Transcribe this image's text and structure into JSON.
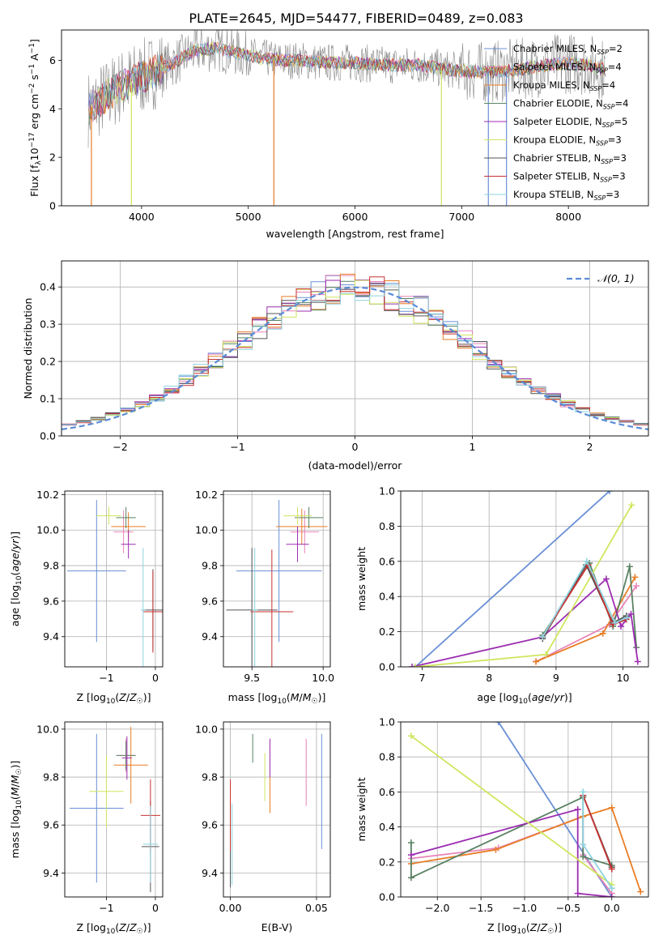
{
  "figure_title": "PLATE=2645, MJD=54477, FIBERID=0489, z=0.083",
  "colors": {
    "Chabrier MILES": "#6a8fd6",
    "Salpeter MILES": "#e784b8",
    "Kroupa MILES": "#e87d26",
    "Chabrier ELODIE": "#5a8262",
    "Salpeter ELODIE": "#9c2db0",
    "Kroupa ELODIE": "#cfe65e",
    "Chabrier STELIB": "#555555",
    "Salpeter STELIB": "#c83232",
    "Kroupa STELIB": "#8fd3df",
    "observed": "#888888",
    "normal": "#5b8bd6"
  },
  "chart_data": [
    {
      "id": "spectrum",
      "type": "line",
      "xlabel": "wavelength [Angstrom, rest frame]",
      "ylabel": "Flux [f_λ10^-17 erg cm^-2 s^-1 A^-1]",
      "xlim": [
        3250,
        8750
      ],
      "ylim": [
        0,
        7.25
      ],
      "xticks": [
        4000,
        5000,
        6000,
        7000,
        8000
      ],
      "yticks": [
        0,
        2,
        4,
        6
      ],
      "legend": [
        {
          "name": "Chabrier MILES",
          "text": "Chabrier MILES, N",
          "sub": "SSP",
          "tail": "=2"
        },
        {
          "name": "Salpeter MILES",
          "text": "Salpeter MILES, N",
          "sub": "SSP",
          "tail": "=4"
        },
        {
          "name": "Kroupa MILES",
          "text": "Kroupa MILES, N",
          "sub": "SSP",
          "tail": "=4"
        },
        {
          "name": "Chabrier ELODIE",
          "text": "Chabrier ELODIE, N",
          "sub": "SSP",
          "tail": "=4"
        },
        {
          "name": "Salpeter ELODIE",
          "text": "Salpeter ELODIE, N",
          "sub": "SSP",
          "tail": "=5"
        },
        {
          "name": "Kroupa ELODIE",
          "text": "Kroupa ELODIE, N",
          "sub": "SSP",
          "tail": "=3"
        },
        {
          "name": "Chabrier STELIB",
          "text": "Chabrier STELIB, N",
          "sub": "SSP",
          "tail": "=3"
        },
        {
          "name": "Salpeter STELIB",
          "text": "Salpeter STELIB, N",
          "sub": "SSP",
          "tail": "=3"
        },
        {
          "name": "Kroupa STELIB",
          "text": "Kroupa STELIB, N",
          "sub": "SSP",
          "tail": "=3"
        }
      ],
      "continuum": [
        [
          3500,
          4.0
        ],
        [
          3600,
          4.3
        ],
        [
          3700,
          4.6
        ],
        [
          3800,
          4.9
        ],
        [
          3950,
          5.2
        ],
        [
          4100,
          5.5
        ],
        [
          4300,
          5.9
        ],
        [
          4500,
          6.4
        ],
        [
          4700,
          6.5
        ],
        [
          4900,
          6.3
        ],
        [
          5100,
          6.1
        ],
        [
          5300,
          6.0
        ],
        [
          5500,
          6.0
        ],
        [
          5700,
          5.9
        ],
        [
          6000,
          5.9
        ],
        [
          6300,
          5.8
        ],
        [
          6600,
          5.8
        ],
        [
          6900,
          5.6
        ],
        [
          7200,
          5.5
        ],
        [
          7500,
          5.6
        ],
        [
          7800,
          5.8
        ],
        [
          8000,
          5.9
        ],
        [
          8200,
          5.8
        ],
        [
          8350,
          5.6
        ]
      ],
      "dips": [
        {
          "x": 3530,
          "y": 0.0,
          "name": "Kroupa MILES"
        },
        {
          "x": 3905,
          "y": 0.0,
          "name": "Kroupa ELODIE"
        },
        {
          "x": 5240,
          "y": 0.0,
          "name": "Kroupa MILES"
        },
        {
          "x": 6810,
          "y": 0.0,
          "name": "Kroupa ELODIE"
        },
        {
          "x": 7250,
          "y": 0.0,
          "name": "Chabrier MILES"
        },
        {
          "x": 7420,
          "y": 0.0,
          "name": "Chabrier MILES"
        }
      ]
    },
    {
      "id": "residuals",
      "type": "area",
      "xlabel": "(data-model)/error",
      "ylabel": "Normed distribution",
      "xlim": [
        -2.5,
        2.5
      ],
      "ylim": [
        0,
        0.47
      ],
      "xticks": [
        -2,
        -1,
        0,
        1,
        2
      ],
      "xtick_labels": [
        "−2",
        "−1",
        "0",
        "1",
        "2"
      ],
      "yticks": [
        0.0,
        0.1,
        0.2,
        0.3,
        0.4
      ],
      "legend": "𝒩(0, 1)",
      "bins": 40
    },
    {
      "id": "age_vs_Z",
      "type": "scatter",
      "xlabel": "Z [log10(Z/Z☉)]",
      "ylabel": "age  [log10(age/yr)]",
      "xlim": [
        -1.85,
        0.15
      ],
      "ylim": [
        9.23,
        10.22
      ],
      "xticks": [
        -1,
        0
      ],
      "xtick_labels": [
        "−1",
        "0"
      ],
      "yticks": [
        9.4,
        9.6,
        9.8,
        10.0,
        10.2
      ],
      "points": [
        {
          "name": "Chabrier MILES",
          "x": -1.2,
          "y": 9.77,
          "xerr": 0.6,
          "yerr": 0.4
        },
        {
          "name": "Salpeter MILES",
          "x": -0.65,
          "y": 9.99,
          "xerr": 0.2,
          "yerr": 0.12
        },
        {
          "name": "Kroupa MILES",
          "x": -0.55,
          "y": 10.02,
          "xerr": 0.35,
          "yerr": 0.08
        },
        {
          "name": "Chabrier ELODIE",
          "x": -0.6,
          "y": 10.07,
          "xerr": 0.2,
          "yerr": 0.06
        },
        {
          "name": "Salpeter ELODIE",
          "x": -0.55,
          "y": 9.92,
          "xerr": 0.15,
          "yerr": 0.08
        },
        {
          "name": "Kroupa ELODIE",
          "x": -0.95,
          "y": 10.08,
          "xerr": 0.25,
          "yerr": 0.05
        },
        {
          "name": "Chabrier STELIB",
          "x": -0.05,
          "y": 9.55,
          "xerr": 0.2,
          "yerr": 0.23
        },
        {
          "name": "Salpeter STELIB",
          "x": -0.05,
          "y": 9.54,
          "xerr": 0.2,
          "yerr": 0.23
        },
        {
          "name": "Kroupa STELIB",
          "x": -0.25,
          "y": 9.55,
          "xerr": 0.05,
          "yerr": 0.35
        }
      ]
    },
    {
      "id": "age_vs_mass",
      "type": "scatter",
      "xlabel": "mass [log10(M/M☉)]",
      "ylabel": "",
      "xlim": [
        9.3,
        10.05
      ],
      "ylim": [
        9.23,
        10.22
      ],
      "xticks": [
        9.5,
        10.0
      ],
      "xtick_labels": [
        "9.5",
        "10.0"
      ],
      "yticks": [
        9.4,
        9.6,
        9.8,
        10.0,
        10.2
      ],
      "points": [
        {
          "name": "Chabrier MILES",
          "x": 9.69,
          "y": 9.77,
          "xerr": 0.3,
          "yerr": 0.4
        },
        {
          "name": "Salpeter MILES",
          "x": 9.87,
          "y": 9.99,
          "xerr": 0.1,
          "yerr": 0.12
        },
        {
          "name": "Kroupa MILES",
          "x": 9.85,
          "y": 10.02,
          "xerr": 0.18,
          "yerr": 0.1
        },
        {
          "name": "Chabrier ELODIE",
          "x": 9.9,
          "y": 10.07,
          "xerr": 0.1,
          "yerr": 0.06
        },
        {
          "name": "Salpeter ELODIE",
          "x": 9.82,
          "y": 9.92,
          "xerr": 0.08,
          "yerr": 0.1
        },
        {
          "name": "Kroupa ELODIE",
          "x": 9.82,
          "y": 10.08,
          "xerr": 0.1,
          "yerr": 0.05
        },
        {
          "name": "Chabrier STELIB",
          "x": 9.5,
          "y": 9.55,
          "xerr": 0.18,
          "yerr": 0.35
        },
        {
          "name": "Salpeter STELIB",
          "x": 9.64,
          "y": 9.54,
          "xerr": 0.15,
          "yerr": 0.35
        },
        {
          "name": "Kroupa STELIB",
          "x": 9.52,
          "y": 9.55,
          "xerr": 0.02,
          "yerr": 0.35
        }
      ]
    },
    {
      "id": "weight_vs_age",
      "type": "line",
      "xlabel": "age  [log10(age/yr)]",
      "ylabel": "mass weight",
      "xlim": [
        6.68,
        10.38
      ],
      "ylim": [
        0,
        1.0
      ],
      "xticks": [
        7,
        8,
        9,
        10
      ],
      "yticks": [
        0.0,
        0.2,
        0.4,
        0.6,
        0.8,
        1.0
      ],
      "series": [
        {
          "name": "Chabrier MILES",
          "x": [
            6.9,
            9.8
          ],
          "y": [
            0.0,
            1.0
          ]
        },
        {
          "name": "Salpeter MILES",
          "x": [
            8.7,
            9.8,
            10.2
          ],
          "y": [
            0.03,
            0.24,
            0.46
          ]
        },
        {
          "name": "Kroupa MILES",
          "x": [
            8.7,
            9.7,
            10.18
          ],
          "y": [
            0.03,
            0.19,
            0.51
          ]
        },
        {
          "name": "Chabrier ELODIE",
          "x": [
            8.8,
            9.5,
            9.85,
            10.1,
            10.2
          ],
          "y": [
            0.18,
            0.59,
            0.23,
            0.57,
            0.11
          ]
        },
        {
          "name": "Salpeter ELODIE",
          "x": [
            6.85,
            8.8,
            9.75,
            9.97,
            10.12,
            10.22
          ],
          "y": [
            0.0,
            0.17,
            0.5,
            0.23,
            0.3,
            0.03
          ]
        },
        {
          "name": "Kroupa ELODIE",
          "x": [
            6.9,
            8.85,
            10.13
          ],
          "y": [
            0.0,
            0.07,
            0.92
          ]
        },
        {
          "name": "Chabrier STELIB",
          "x": [
            8.8,
            9.45,
            9.85,
            10.05
          ],
          "y": [
            0.16,
            0.58,
            0.25,
            0.29
          ]
        },
        {
          "name": "Salpeter STELIB",
          "x": [
            8.8,
            9.48,
            9.85,
            10.05
          ],
          "y": [
            0.17,
            0.58,
            0.24,
            0.27
          ]
        },
        {
          "name": "Kroupa STELIB",
          "x": [
            8.8,
            9.46,
            9.88,
            10.06
          ],
          "y": [
            0.17,
            0.6,
            0.25,
            0.28
          ]
        }
      ]
    },
    {
      "id": "mass_vs_Z",
      "type": "scatter",
      "xlabel": "Z [log10(Z/Z☉)]",
      "ylabel": "mass [log10(M/M☉)]",
      "xlim": [
        -1.85,
        0.15
      ],
      "ylim": [
        9.3,
        10.03
      ],
      "xticks": [
        -1,
        0
      ],
      "xtick_labels": [
        "−1",
        "0"
      ],
      "yticks": [
        9.4,
        9.6,
        9.8,
        10.0
      ],
      "points": [
        {
          "name": "Chabrier MILES",
          "x": -1.2,
          "y": 9.67,
          "xerr": 0.55,
          "yerr": 0.31
        },
        {
          "name": "Salpeter MILES",
          "x": -0.6,
          "y": 9.89,
          "xerr": 0.18,
          "yerr": 0.07
        },
        {
          "name": "Kroupa MILES",
          "x": -0.5,
          "y": 9.85,
          "xerr": 0.35,
          "yerr": 0.16
        },
        {
          "name": "Chabrier ELODIE",
          "x": -0.6,
          "y": 9.89,
          "xerr": 0.2,
          "yerr": 0.06
        },
        {
          "name": "Salpeter ELODIE",
          "x": -0.58,
          "y": 9.88,
          "xerr": 0.1,
          "yerr": 0.09
        },
        {
          "name": "Kroupa ELODIE",
          "x": -1.0,
          "y": 9.74,
          "xerr": 0.35,
          "yerr": 0.15
        },
        {
          "name": "Chabrier STELIB",
          "x": -0.1,
          "y": 9.51,
          "xerr": 0.18,
          "yerr": 0.19
        },
        {
          "name": "Salpeter STELIB",
          "x": -0.1,
          "y": 9.64,
          "xerr": 0.2,
          "yerr": 0.15
        },
        {
          "name": "Kroupa STELIB",
          "x": -0.1,
          "y": 9.52,
          "xerr": 0.15,
          "yerr": 0.16
        }
      ]
    },
    {
      "id": "mass_vs_ebv",
      "type": "scatter",
      "xlabel": "E(B-V)",
      "ylabel": "",
      "xlim": [
        -0.004,
        0.058
      ],
      "ylim": [
        9.3,
        10.03
      ],
      "xticks": [
        0.0,
        0.05
      ],
      "xtick_labels": [
        "0.00",
        "0.05"
      ],
      "yticks": [
        9.4,
        9.6,
        9.8,
        10.0
      ],
      "points": [
        {
          "name": "Chabrier MILES",
          "x": 0.053,
          "y": 9.74,
          "xerr": 0,
          "yerr": 0.24
        },
        {
          "name": "Salpeter MILES",
          "x": 0.044,
          "y": 9.82,
          "xerr": 0,
          "yerr": 0.14
        },
        {
          "name": "Kroupa MILES",
          "x": 0.023,
          "y": 9.8,
          "xerr": 0,
          "yerr": 0.15
        },
        {
          "name": "Chabrier ELODIE",
          "x": 0.013,
          "y": 9.92,
          "xerr": 0,
          "yerr": 0.06
        },
        {
          "name": "Salpeter ELODIE",
          "x": 0.023,
          "y": 9.88,
          "xerr": 0,
          "yerr": 0.08
        },
        {
          "name": "Kroupa ELODIE",
          "x": 0.02,
          "y": 9.8,
          "xerr": 0,
          "yerr": 0.1
        },
        {
          "name": "Chabrier STELIB",
          "x": 0.0,
          "y": 9.52,
          "xerr": 0,
          "yerr": 0.18
        },
        {
          "name": "Salpeter STELIB",
          "x": 0.0,
          "y": 9.64,
          "xerr": 0,
          "yerr": 0.15
        },
        {
          "name": "Kroupa STELIB",
          "x": 0.001,
          "y": 9.52,
          "xerr": 0,
          "yerr": 0.17
        }
      ]
    },
    {
      "id": "weight_vs_Z",
      "type": "line",
      "xlabel": "Z [log10(Z/Z☉)]",
      "ylabel": "mass weight",
      "xlim": [
        -2.42,
        0.42
      ],
      "ylim": [
        0,
        1.0
      ],
      "xticks": [
        -2.0,
        -1.5,
        -1.0,
        -0.5,
        0.0
      ],
      "xtick_labels": [
        "−2.0",
        "−1.5",
        "−1.0",
        "−0.5",
        "0.0"
      ],
      "yticks": [
        0.0,
        0.2,
        0.4,
        0.6,
        0.8,
        1.0
      ],
      "series": [
        {
          "name": "Chabrier MILES",
          "x": [
            -1.3,
            0.0
          ],
          "y": [
            1.0,
            0.0
          ]
        },
        {
          "name": "Salpeter MILES",
          "x": [
            -2.3,
            -1.3,
            -0.33,
            -0.33,
            0.0
          ],
          "y": [
            0.22,
            0.28,
            0.46,
            0.24,
            0.02
          ]
        },
        {
          "name": "Kroupa MILES",
          "x": [
            -2.3,
            -1.33,
            -0.33,
            0.0,
            0.33
          ],
          "y": [
            0.19,
            0.27,
            0.46,
            0.51,
            0.03
          ]
        },
        {
          "name": "Chabrier ELODIE",
          "x": [
            -2.3,
            -2.3,
            -0.33,
            -0.33,
            0.0
          ],
          "y": [
            0.31,
            0.11,
            0.57,
            0.23,
            0.18
          ]
        },
        {
          "name": "Salpeter ELODIE",
          "x": [
            -2.3,
            -0.39,
            -0.39,
            0.0
          ],
          "y": [
            0.24,
            0.5,
            0.02,
            0.0
          ]
        },
        {
          "name": "Kroupa ELODIE",
          "x": [
            -2.3,
            0.0
          ],
          "y": [
            0.92,
            0.07
          ]
        },
        {
          "name": "Chabrier STELIB",
          "x": [
            -0.33,
            0.0
          ],
          "y": [
            0.58,
            0.17
          ]
        },
        {
          "name": "Salpeter STELIB",
          "x": [
            -0.33,
            0.0
          ],
          "y": [
            0.58,
            0.16
          ]
        },
        {
          "name": "Kroupa STELIB",
          "x": [
            -0.33,
            -0.33,
            0.0
          ],
          "y": [
            0.6,
            0.3,
            0.05
          ]
        }
      ]
    }
  ]
}
